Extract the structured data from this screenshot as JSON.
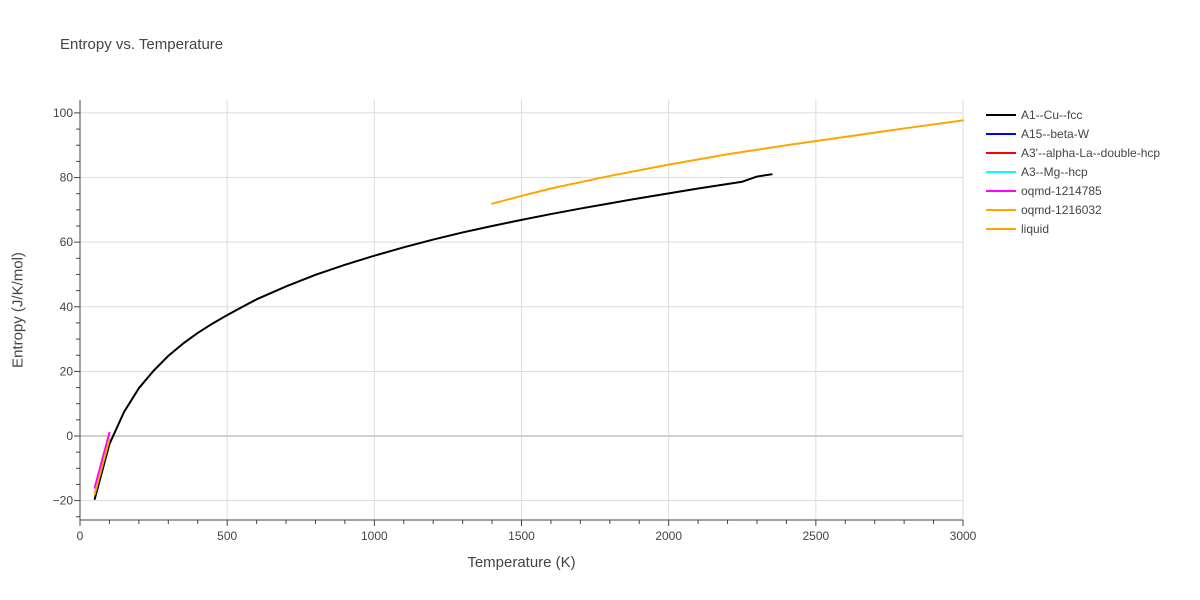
{
  "chart_data": {
    "type": "line",
    "title": "Entropy vs. Temperature",
    "xlabel": "Temperature (K)",
    "ylabel": "Entropy (J/K/mol)",
    "xlim": [
      0,
      3000
    ],
    "ylim": [
      -26,
      104
    ],
    "xticks": [
      0,
      500,
      1000,
      1500,
      2000,
      2500,
      3000
    ],
    "xtick_labels": [
      "0",
      "500",
      "1000",
      "1500",
      "2000",
      "2500",
      "3000"
    ],
    "yticks": [
      -20,
      0,
      20,
      40,
      60,
      80,
      100
    ],
    "ytick_labels": [
      "−20",
      "0",
      "20",
      "40",
      "60",
      "80",
      "100"
    ],
    "grid": true,
    "legend_position": "right",
    "series": [
      {
        "name": "A1--Cu--fcc",
        "color": "#000000",
        "x": [
          50,
          100,
          150,
          200,
          250,
          300,
          350,
          400,
          450,
          500,
          550,
          600,
          700,
          800,
          900,
          1000,
          1100,
          1200,
          1300,
          1400,
          1500,
          1600,
          1700,
          1800,
          1900,
          2000,
          2100,
          2200,
          2250,
          2300,
          2350
        ],
        "y": [
          -19.5,
          -2.5,
          7.5,
          14.8,
          20.2,
          24.8,
          28.6,
          31.9,
          34.8,
          37.4,
          39.9,
          42.3,
          46.3,
          49.9,
          53.0,
          55.8,
          58.4,
          60.8,
          63.0,
          65.0,
          66.9,
          68.7,
          70.4,
          72.0,
          73.6,
          75.1,
          76.6,
          78.0,
          78.7,
          80.3,
          81.0
        ]
      },
      {
        "name": "A15--beta-W",
        "color": "#0000ff",
        "x": [],
        "y": []
      },
      {
        "name": "A3'--alpha-La--double-hcp",
        "color": "#ff0000",
        "x": [],
        "y": []
      },
      {
        "name": "A3--Mg--hcp",
        "color": "#00ffff",
        "x": [],
        "y": []
      },
      {
        "name": "oqmd-1214785",
        "color": "#ff00ff",
        "x": [
          50,
          100
        ],
        "y": [
          -16.0,
          1.0
        ]
      },
      {
        "name": "oqmd-1216032",
        "color": "#ffa500",
        "x": [
          50,
          100
        ],
        "y": [
          -18.0,
          -1.0
        ]
      },
      {
        "name": "liquid",
        "color": "#ffa500",
        "x": [
          1400,
          1500,
          1600,
          1800,
          2000,
          2200,
          2400,
          2600,
          2800,
          3000
        ],
        "y": [
          71.9,
          74.3,
          76.6,
          80.5,
          84.0,
          87.2,
          90.0,
          92.6,
          95.2,
          97.7
        ]
      }
    ]
  }
}
